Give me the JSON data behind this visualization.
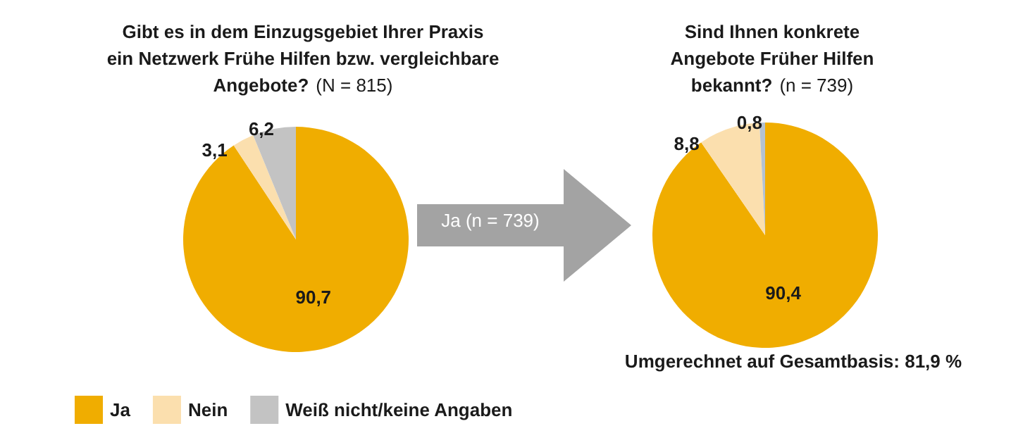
{
  "chart_data": [
    {
      "type": "pie",
      "title": "Gibt es in dem Einzugsgebiet Ihrer Praxis\nein Netzwerk Frühe Hilfen bzw. vergleichbare\nAngebote? (N = 815)",
      "categories": [
        "Ja",
        "Nein",
        "Weiß nicht/keine Angaben"
      ],
      "values": [
        90.7,
        3.1,
        6.2
      ],
      "value_labels": [
        "90,7",
        "3,1",
        "6,2"
      ],
      "colors": [
        "#f0ad00",
        "#fbdfae",
        "#c3c3c3"
      ],
      "legend": "bottom left",
      "annotations": [
        "Ja (n = 739)"
      ]
    },
    {
      "type": "pie",
      "title": "Sind Ihnen konkrete\nAngebote Früher Hilfen\nbekannt? (n = 739)",
      "categories": [
        null,
        null,
        null
      ],
      "values": [
        90.4,
        8.8,
        0.8
      ],
      "value_labels": [
        "90,4",
        "8,8",
        "0,8"
      ],
      "colors": [
        "#f0ad00",
        "#fbdfae",
        "#b4c2d2"
      ],
      "legend": false,
      "annotations": [
        "Umgerechnet auf Gesamtbasis: 81,9 %"
      ]
    }
  ]
}
